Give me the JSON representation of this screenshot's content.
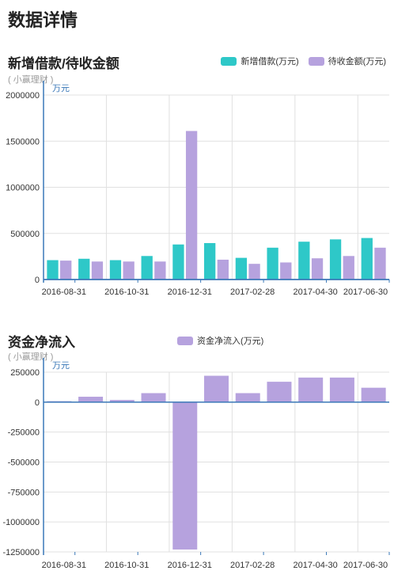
{
  "page": {
    "title": "数据详情"
  },
  "colors": {
    "teal": "#2ec8c8",
    "purple": "#b6a2de",
    "axis": "#3a78b8",
    "grid": "#e0e0e0"
  },
  "chart_data": [
    {
      "type": "bar",
      "title": "新增借款/待收金额",
      "subtitle": "( 小赢理财 )",
      "ylabel": "万元",
      "ylim": [
        0,
        2000000
      ],
      "yticks": [
        0,
        500000,
        1000000,
        1500000,
        2000000
      ],
      "ytick_labels": [
        "0",
        "500000",
        "1000000",
        "1500000",
        "2000000"
      ],
      "xtick_labels": [
        "2016-08-31",
        "2016-10-31",
        "2016-12-31",
        "2017-02-28",
        "2017-04-30",
        "2017-06-30"
      ],
      "legend_position": "top-right",
      "categories": [
        "2016-08",
        "2016-09",
        "2016-10",
        "2016-11",
        "2016-12",
        "2017-01",
        "2017-02",
        "2017-03",
        "2017-04",
        "2017-05",
        "2017-06"
      ],
      "series": [
        {
          "name": "新增借款(万元)",
          "color": "#2ec8c8",
          "values": [
            210000,
            225000,
            210000,
            255000,
            380000,
            395000,
            235000,
            345000,
            410000,
            435000,
            450000
          ]
        },
        {
          "name": "待收金额(万元)",
          "color": "#b6a2de",
          "values": [
            205000,
            195000,
            195000,
            195000,
            1610000,
            215000,
            170000,
            185000,
            230000,
            255000,
            345000
          ]
        }
      ]
    },
    {
      "type": "bar",
      "title": "资金净流入",
      "subtitle": "( 小赢理财 )",
      "ylabel": "万元",
      "ylim": [
        -1250000,
        250000
      ],
      "yticks": [
        -1250000,
        -1000000,
        -750000,
        -500000,
        -250000,
        0,
        250000
      ],
      "ytick_labels": [
        "-1250000",
        "-1000000",
        "-750000",
        "-500000",
        "-250000",
        "0",
        "250000"
      ],
      "xtick_labels": [
        "2016-08-31",
        "2016-10-31",
        "2016-12-31",
        "2017-02-28",
        "2017-04-30",
        "2017-06-30"
      ],
      "legend_position": "top-center",
      "categories": [
        "2016-08",
        "2016-09",
        "2016-10",
        "2016-11",
        "2016-12",
        "2017-01",
        "2017-02",
        "2017-03",
        "2017-04",
        "2017-05",
        "2017-06"
      ],
      "series": [
        {
          "name": "资金净流入(万元)",
          "color": "#b6a2de",
          "values": [
            8000,
            45000,
            18000,
            75000,
            -1230000,
            220000,
            75000,
            170000,
            205000,
            205000,
            120000
          ]
        }
      ]
    }
  ]
}
